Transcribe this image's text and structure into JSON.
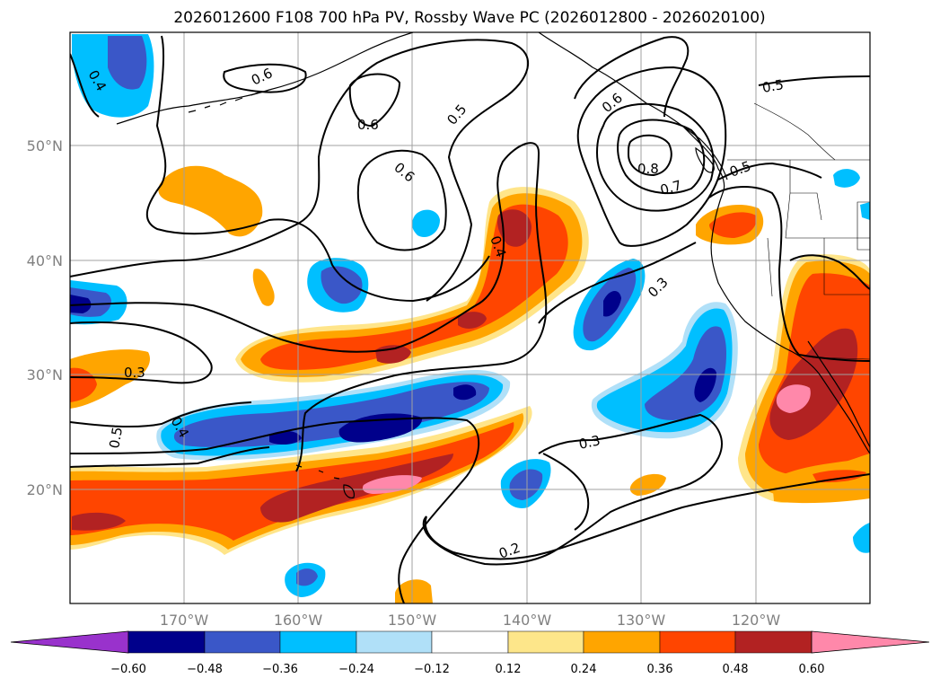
{
  "title": "2026012600 F108 700 hPa PV, Rossby Wave PC (2026012800 - 2026020100)",
  "lat_labels": [
    "50°N",
    "40°N",
    "30°N",
    "20°N"
  ],
  "lon_labels": [
    "170°W",
    "160°W",
    "150°W",
    "140°W",
    "130°W",
    "120°W"
  ],
  "contour_labels": [
    "0.4",
    "0.6",
    "0.6",
    "0.6",
    "0.5",
    "0.6",
    "0.8",
    "0.7",
    "0.5",
    "0.5",
    "0.4",
    "0.3",
    "0.3",
    "0.5",
    "0.4",
    "0.3",
    "0.2"
  ],
  "colorbar": {
    "ticks": [
      "−0.60",
      "−0.48",
      "−0.36",
      "−0.24",
      "−0.12",
      "0.12",
      "0.24",
      "0.36",
      "0.48",
      "0.60"
    ],
    "colors": [
      "#9932cc",
      "#00008b",
      "#3a57c8",
      "#00bfff",
      "#b0e0f8",
      "#ffffff",
      "#fde68a",
      "#ffa500",
      "#ff4500",
      "#b22222",
      "#ff88aa"
    ]
  }
}
